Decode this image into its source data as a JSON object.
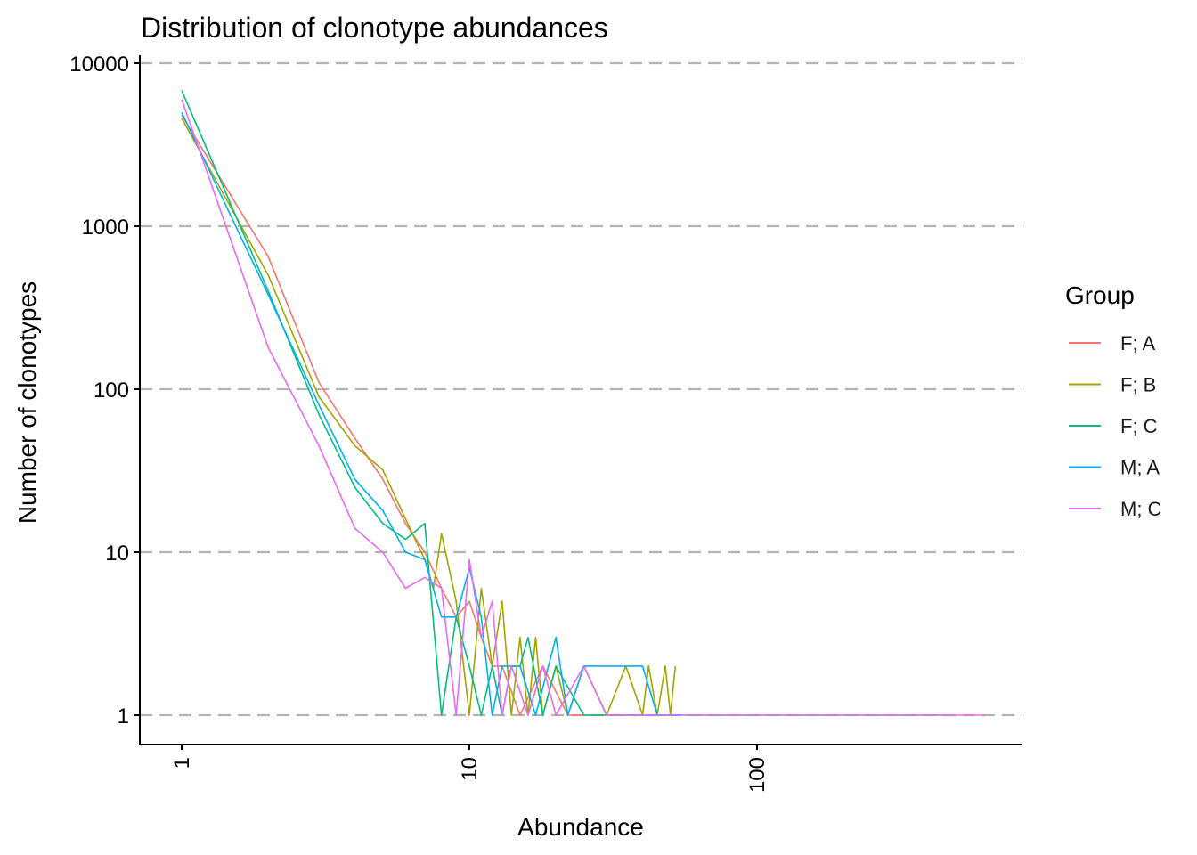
{
  "chart_data": {
    "type": "line",
    "title": "Distribution of clonotype abundances",
    "xlabel": "Abundance",
    "ylabel": "Number of clonotypes",
    "x_scale": "log10",
    "y_scale": "log10",
    "xlim": [
      0.9,
      760
    ],
    "ylim": [
      0.8,
      10000
    ],
    "x_ticks": [
      1,
      10,
      100
    ],
    "x_tick_labels": [
      "1",
      "10",
      "100"
    ],
    "y_ticks": [
      1,
      10,
      100,
      1000,
      10000
    ],
    "y_tick_labels": [
      "1",
      "10",
      "100",
      "1000",
      "10000"
    ],
    "grid": "horizontal dashed",
    "legend": {
      "title": "Group",
      "position": "right"
    },
    "series": [
      {
        "name": "F; A",
        "color": "#F8766D",
        "x": [
          1,
          2,
          3,
          4,
          5,
          6,
          7,
          8,
          9,
          10,
          11,
          12,
          13,
          15,
          18,
          22,
          30,
          50
        ],
        "y": [
          4800,
          650,
          110,
          50,
          28,
          15,
          10,
          6,
          4,
          5,
          3,
          2,
          2,
          1,
          2,
          1,
          1,
          1
        ]
      },
      {
        "name": "F; B",
        "color": "#A3A500",
        "x": [
          1,
          2,
          3,
          4,
          5,
          6,
          7,
          7.5,
          8,
          9,
          10,
          11,
          12,
          13,
          14,
          15,
          16,
          17,
          18,
          20,
          22,
          25,
          30,
          35,
          40,
          42,
          45,
          48,
          50,
          52
        ],
        "y": [
          4600,
          500,
          90,
          45,
          32,
          16,
          9,
          6,
          13,
          5,
          1,
          6,
          2,
          5,
          1,
          3,
          1,
          3,
          1,
          2,
          1,
          2,
          1,
          2,
          1,
          2,
          1,
          2,
          1,
          2
        ]
      },
      {
        "name": "F; C",
        "color": "#00BF7D",
        "x": [
          1,
          2,
          3,
          4,
          5,
          6,
          7,
          8,
          9,
          10,
          11,
          12,
          13,
          14,
          15,
          16,
          18,
          20,
          25,
          40,
          70,
          120,
          200,
          300,
          450
        ],
        "y": [
          6800,
          400,
          70,
          25,
          15,
          12,
          15,
          1,
          4,
          2,
          1,
          2,
          1,
          2,
          2,
          3,
          1,
          2,
          1,
          1,
          1,
          1,
          1,
          1,
          1
        ]
      },
      {
        "name": "M; A",
        "color": "#00B0F6",
        "x": [
          1,
          2,
          3,
          4,
          5,
          6,
          7,
          8,
          9,
          10,
          11,
          12,
          13,
          15,
          17,
          20,
          22,
          25,
          30,
          35,
          40,
          45,
          50,
          55
        ],
        "y": [
          5000,
          380,
          80,
          28,
          18,
          10,
          9,
          4,
          4,
          8,
          4,
          1,
          2,
          2,
          1,
          3,
          1,
          2,
          2,
          2,
          2,
          1,
          1,
          1
        ]
      },
      {
        "name": "M; C",
        "color": "#E76BF3",
        "x": [
          1,
          2,
          3,
          4,
          5,
          6,
          7,
          8,
          9,
          10,
          11,
          12,
          13,
          14,
          16,
          18,
          20,
          25,
          30,
          50,
          100,
          200,
          400,
          620
        ],
        "y": [
          6000,
          180,
          45,
          14,
          10,
          6,
          7,
          6,
          1,
          9,
          3,
          5,
          1,
          2,
          1,
          2,
          1,
          2,
          1,
          1,
          1,
          1,
          1,
          1
        ]
      }
    ]
  }
}
